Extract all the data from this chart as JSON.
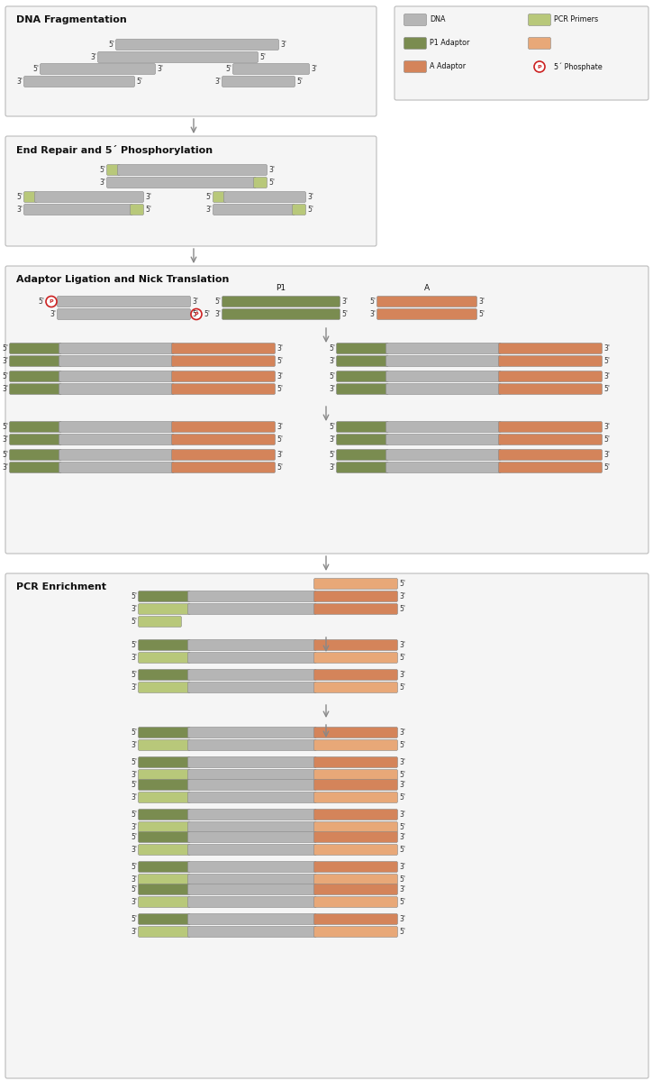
{
  "colors": {
    "dna": "#b5b5b5",
    "p1_adaptor": "#7a8c50",
    "a_adaptor": "#d4845a",
    "pcr_primer_green": "#b8c87a",
    "pcr_primer_orange": "#e8a878",
    "background": "#ffffff",
    "box_bg": "#f5f5f5",
    "box_border": "#bbbbbb",
    "text": "#111111",
    "label": "#333333",
    "arrow": "#888888",
    "phosphate_ring": "#cc2222"
  },
  "sections": {
    "s1_title": "DNA Fragmentation",
    "s2_title": "End Repair and 5´ Phosphorylation",
    "s3_title": "Adaptor Ligation and Nick Translation",
    "s4_title": "PCR Enrichment"
  },
  "legend": {
    "dna": "DNA",
    "p1": "P1 Adaptor",
    "a": "A Adaptor",
    "pcr": "PCR Primers",
    "phos": "5´ Phosphate"
  }
}
